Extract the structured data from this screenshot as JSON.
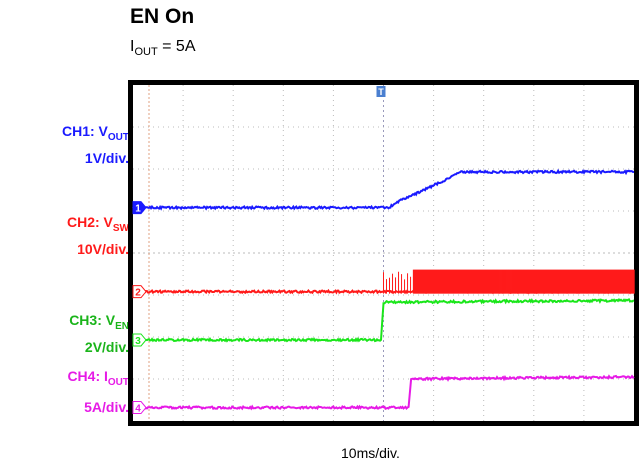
{
  "header": {
    "title": "EN On",
    "subtitle_main": "I",
    "subtitle_sub": "OUT",
    "subtitle_rest": " = 5A"
  },
  "channels": [
    {
      "id": "CH1",
      "prefix": "CH1: V",
      "sub": "OUT",
      "scale": "1V/div.",
      "marker": "1",
      "color": "#1a1aff"
    },
    {
      "id": "CH2",
      "prefix": "CH2: V",
      "sub": "SW",
      "scale": "10V/div.",
      "marker": "2",
      "color": "#ff1a1a"
    },
    {
      "id": "CH3",
      "prefix": "CH3: V",
      "sub": "EN",
      "scale": "2V/div.",
      "marker": "3",
      "color": "#1ae61a"
    },
    {
      "id": "CH4",
      "prefix": "CH4: I",
      "sub": "OUT",
      "scale": "5A/div.",
      "marker": "4",
      "color": "#e61ae6"
    }
  ],
  "trigger_marker": "T",
  "chart_data": {
    "type": "line",
    "xlabel": "10ms/div.",
    "x_divisions": 10,
    "y_divisions": 8,
    "grid": true,
    "x_unit": "div",
    "series": [
      {
        "name": "CH1: VOUT",
        "points": [
          [
            0,
            5.08
          ],
          [
            5.1,
            5.08
          ],
          [
            5.35,
            5.25
          ],
          [
            6.25,
            5.75
          ],
          [
            6.55,
            5.93
          ],
          [
            10,
            5.93
          ]
        ]
      },
      {
        "name": "CH2: VSW",
        "points": [
          [
            0,
            3.08
          ],
          [
            5.0,
            3.08
          ],
          [
            5.45,
            3.08
          ],
          [
            10,
            3.08
          ]
        ],
        "switching_start_div": 5.0,
        "switching_full_div": 5.55
      },
      {
        "name": "CH3: VEN",
        "points": [
          [
            0,
            1.93
          ],
          [
            4.95,
            1.93
          ],
          [
            5.0,
            2.83
          ],
          [
            10,
            2.87
          ]
        ]
      },
      {
        "name": "CH4: IOUT",
        "points": [
          [
            0,
            0.32
          ],
          [
            5.5,
            0.32
          ],
          [
            5.55,
            1.0
          ],
          [
            10,
            1.05
          ]
        ]
      }
    ]
  }
}
